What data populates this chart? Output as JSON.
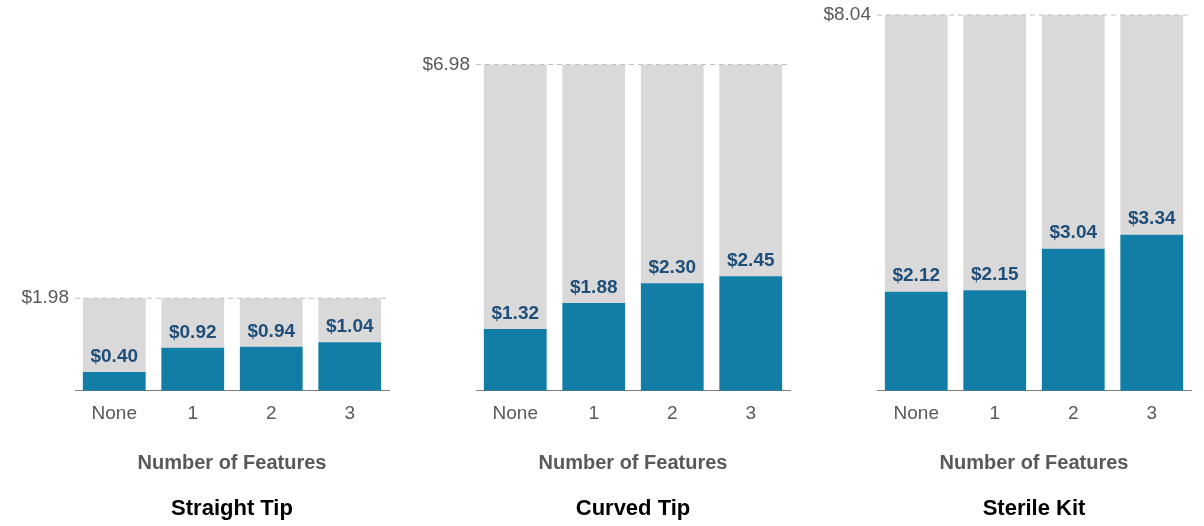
{
  "chart_data": [
    {
      "type": "bar",
      "title": "Straight Tip",
      "xlabel": "Number of Features",
      "categories": [
        "None",
        "1",
        "2",
        "3"
      ],
      "stacked": true,
      "tick_labels": "x",
      "grid": false,
      "legend": false,
      "series": [
        {
          "color": "#127ea8",
          "values": [
            0.4,
            0.92,
            0.94,
            1.04
          ],
          "value_labels": [
            "$0.40",
            "$0.92",
            "$0.94",
            "$1.04"
          ]
        },
        {
          "color": "#d9d9d9",
          "values": [
            1.58,
            1.06,
            1.04,
            0.94
          ]
        }
      ],
      "ref_lines": [
        {
          "axis": "y",
          "value": 1.98,
          "label": "$1.98",
          "line_style": "dashed",
          "color": "#bfbfbf"
        }
      ]
    },
    {
      "type": "bar",
      "title": "Curved Tip",
      "xlabel": "Number of Features",
      "categories": [
        "None",
        "1",
        "2",
        "3"
      ],
      "stacked": true,
      "tick_labels": "x",
      "grid": false,
      "legend": false,
      "series": [
        {
          "color": "#127ea8",
          "values": [
            1.32,
            1.88,
            2.3,
            2.45
          ],
          "value_labels": [
            "$1.32",
            "$1.88",
            "$2.30",
            "$2.45"
          ]
        },
        {
          "color": "#d9d9d9",
          "values": [
            5.66,
            5.1,
            4.68,
            4.53
          ]
        }
      ],
      "ref_lines": [
        {
          "axis": "y",
          "value": 6.98,
          "label": "$6.98",
          "line_style": "dashed",
          "color": "#bfbfbf"
        }
      ]
    },
    {
      "type": "bar",
      "title": "Sterile Kit",
      "xlabel": "Number of Features",
      "categories": [
        "None",
        "1",
        "2",
        "3"
      ],
      "stacked": true,
      "tick_labels": "x",
      "grid": false,
      "legend": false,
      "series": [
        {
          "color": "#127ea8",
          "values": [
            2.12,
            2.15,
            3.04,
            3.34
          ],
          "value_labels": [
            "$2.12",
            "$2.15",
            "$3.04",
            "$3.34"
          ]
        },
        {
          "color": "#d9d9d9",
          "values": [
            5.92,
            5.89,
            5.0,
            4.7
          ]
        }
      ],
      "ref_lines": [
        {
          "axis": "y",
          "value": 8.04,
          "label": "$8.04",
          "line_style": "dashed",
          "color": "#bfbfbf"
        }
      ]
    }
  ]
}
